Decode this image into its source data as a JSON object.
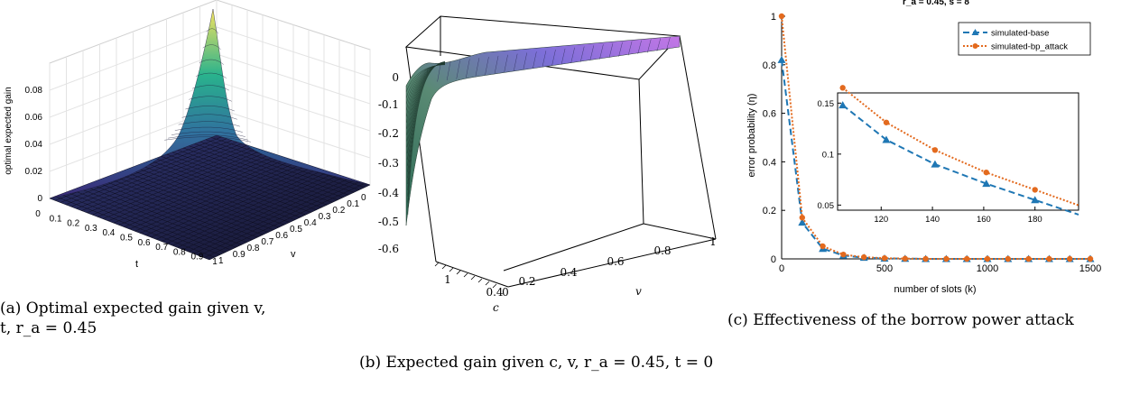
{
  "panels": {
    "a": {
      "caption": "(a) Optimal expected gain given v, t, r_a = 0.45"
    },
    "b": {
      "caption": "(b) Expected gain given c, v, r_a = 0.45, t = 0"
    },
    "c": {
      "caption": "(c) Effectiveness of the borrow power attack"
    }
  },
  "colors": {
    "blue": "#1f77b4",
    "orange": "#e36a1e",
    "surface_low": "#1b1b3a"
  },
  "chart_data": [
    {
      "type": "surface3d",
      "title": "",
      "xlabel": "t",
      "ylabel": "v",
      "zlabel": "optimal expected gain",
      "x_ticks": [
        "0",
        "0.1",
        "0.2",
        "0.3",
        "0.4",
        "0.5",
        "0.6",
        "0.7",
        "0.8",
        "0.9",
        "1"
      ],
      "y_ticks": [
        "0",
        "0.1",
        "0.2",
        "0.3",
        "0.4",
        "0.5",
        "0.6",
        "0.7",
        "0.8",
        "0.9",
        "1"
      ],
      "z_ticks": [
        "0",
        "0.02",
        "0.04",
        "0.06",
        "0.08"
      ],
      "zlim": [
        0,
        0.1
      ],
      "peak": {
        "t": 0,
        "v": 0,
        "z": 0.1
      }
    },
    {
      "type": "surface3d",
      "title": "",
      "xlabel": "c",
      "ylabel": "v",
      "zlabel": "",
      "c_ticks": [
        "1",
        "0.4",
        "0"
      ],
      "v_ticks": [
        "0.2",
        "0.4",
        "0.6",
        "0.8",
        "1"
      ],
      "z_ticks": [
        "0",
        "-0.1",
        "-0.2",
        "-0.3",
        "-0.4",
        "-0.5",
        "-0.6"
      ],
      "zlim": [
        -0.65,
        0.05
      ]
    },
    {
      "type": "line",
      "title": "r_a = 0.45, s = 8",
      "xlabel": "number of slots (k)",
      "ylabel": "error probability (η)",
      "xlim": [
        0,
        1500
      ],
      "ylim": [
        0,
        1
      ],
      "x_ticks": [
        "0",
        "500",
        "1000",
        "1500"
      ],
      "y_ticks": [
        "0",
        "0.2",
        "0.4",
        "0.6",
        "0.8",
        "1"
      ],
      "legend": "top-right",
      "x": [
        0,
        100,
        200,
        300,
        400,
        500,
        600,
        700,
        800,
        900,
        1000,
        1100,
        1200,
        1300,
        1400,
        1500
      ],
      "series": [
        {
          "name": "simulated-base",
          "style": "dashed",
          "marker": "triangle",
          "color": "#1f77b4",
          "values": [
            0.82,
            0.15,
            0.042,
            0.014,
            0.005,
            0.002,
            0.001,
            0,
            0,
            0,
            0,
            0,
            0,
            0,
            0,
            0
          ]
        },
        {
          "name": "simulated-bp_attack",
          "style": "dotted",
          "marker": "circle",
          "color": "#e36a1e",
          "values": [
            1.0,
            0.17,
            0.052,
            0.018,
            0.007,
            0.003,
            0.001,
            0,
            0,
            0,
            0,
            0,
            0,
            0,
            0,
            0
          ]
        }
      ],
      "inset": {
        "xlim": [
          103,
          197
        ],
        "ylim": [
          0.045,
          0.16
        ],
        "x_ticks": [
          "120",
          "140",
          "160",
          "180"
        ],
        "y_ticks": [
          "0.05",
          "0.1",
          "0.15"
        ],
        "x": [
          105,
          122,
          141,
          161,
          180
        ],
        "series": [
          {
            "name": "simulated-base",
            "values": [
              0.148,
              0.114,
              0.09,
              0.071,
              0.055
            ]
          },
          {
            "name": "simulated-bp_attack",
            "values": [
              0.165,
              0.131,
              0.104,
              0.082,
              0.065
            ]
          }
        ]
      }
    }
  ]
}
